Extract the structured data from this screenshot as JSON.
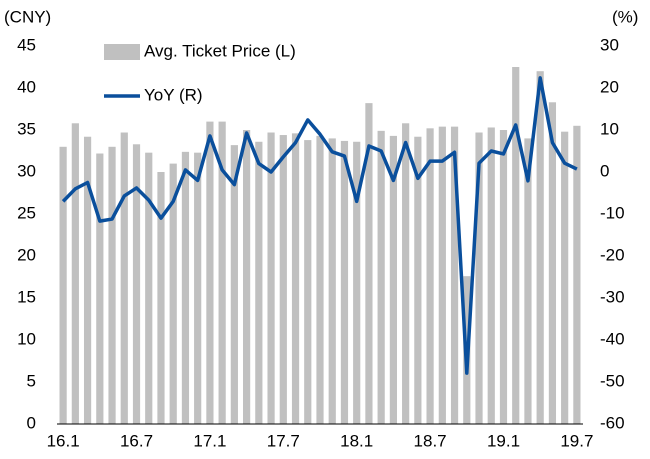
{
  "chart_data": {
    "type": "bar-line",
    "y_label": "(CNY)",
    "y2_label": "(%)",
    "categories": [
      "16.1",
      null,
      null,
      null,
      null,
      null,
      "16.7",
      null,
      null,
      null,
      null,
      null,
      "17.1",
      null,
      null,
      null,
      null,
      null,
      "17.7",
      null,
      null,
      null,
      null,
      null,
      "18.1",
      null,
      null,
      null,
      null,
      null,
      "18.7",
      null,
      null,
      null,
      null,
      null,
      "19.1",
      null,
      null,
      null,
      null,
      null,
      "19.7"
    ],
    "series": [
      {
        "name": "Avg. Ticket Price (L)",
        "type": "bar",
        "color": "#c0c0c0",
        "values": [
          33,
          35.8,
          34.2,
          32.2,
          33,
          34.7,
          33.3,
          32.3,
          30,
          31,
          32.4,
          32.3,
          36,
          36,
          33.2,
          35,
          33.6,
          34.7,
          34.4,
          34.6,
          33.8,
          34.3,
          34,
          33.7,
          33.6,
          38.2,
          34.9,
          34.3,
          35.8,
          34.2,
          35.2,
          35.4,
          35.4,
          17.6,
          34.7,
          35.3,
          35,
          42.5,
          34,
          42,
          38.3,
          34.8,
          35.5
        ]
      },
      {
        "name": "YoY (R)",
        "type": "line",
        "axis": "y2",
        "color": "#0a4f9c",
        "values": [
          -7,
          -4,
          -2.5,
          -11.7,
          -11.2,
          -5.7,
          -3.8,
          -6.7,
          -11,
          -7,
          0.5,
          -2,
          8.6,
          0.5,
          -3,
          9.3,
          2,
          0,
          3.6,
          7,
          12.4,
          9,
          4.8,
          3.8,
          -7,
          6.2,
          5,
          -2,
          7,
          -1.5,
          2.6,
          2.6,
          4.7,
          -47.9,
          2.1,
          5,
          4.3,
          11.2,
          -2.1,
          22.4,
          7,
          2.1,
          0.7
        ]
      }
    ],
    "ylim": [
      0,
      45
    ],
    "yticks": [
      0,
      5,
      10,
      15,
      20,
      25,
      30,
      35,
      40,
      45
    ],
    "y2lim": [
      -60,
      30
    ],
    "y2ticks": [
      -60,
      -50,
      -40,
      -30,
      -20,
      -10,
      0,
      10,
      20,
      30
    ]
  }
}
